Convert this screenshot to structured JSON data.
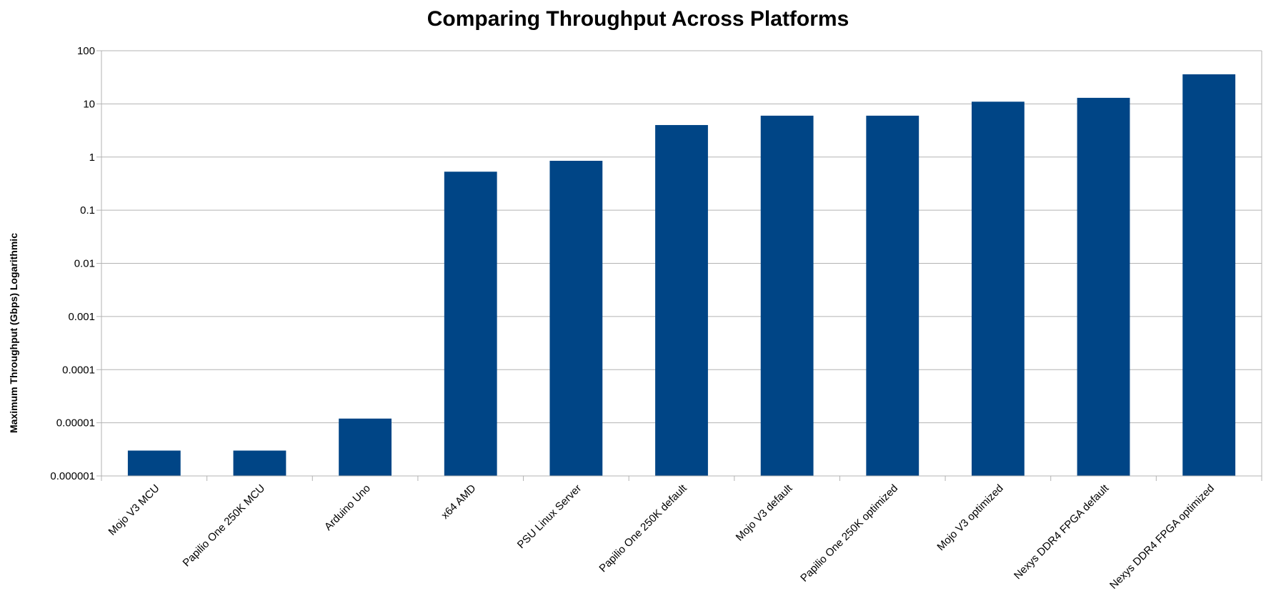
{
  "chart_data": {
    "type": "bar",
    "title": "Comparing Throughput Across Platforms",
    "xlabel": "",
    "ylabel": "Maximum Throughput (Gbps) Logarithmic",
    "yscale": "log",
    "ylim": [
      1e-06,
      100
    ],
    "yticks": [
      "0.000001",
      "0.00001",
      "0.0001",
      "0.001",
      "0.01",
      "0.1",
      "1",
      "10",
      "100"
    ],
    "grid": true,
    "legend": "none",
    "bar_color": "#004586",
    "categories": [
      "Mojo V3 MCU",
      "Papilio One 250K MCU",
      "Arduino Uno",
      "x64 AMD",
      "PSU Linux Server",
      "Papilio One 250K default",
      "Mojo V3 default",
      "Papilio One 250K optimized",
      "Mojo V3 optimized",
      "Nexys DDR4 FPGA default",
      "Nexys DDR4 FPGA optimized"
    ],
    "values": [
      3e-06,
      3e-06,
      1.2e-05,
      0.53,
      0.85,
      4.0,
      6.0,
      6.0,
      11.0,
      13.0,
      36.0
    ]
  }
}
